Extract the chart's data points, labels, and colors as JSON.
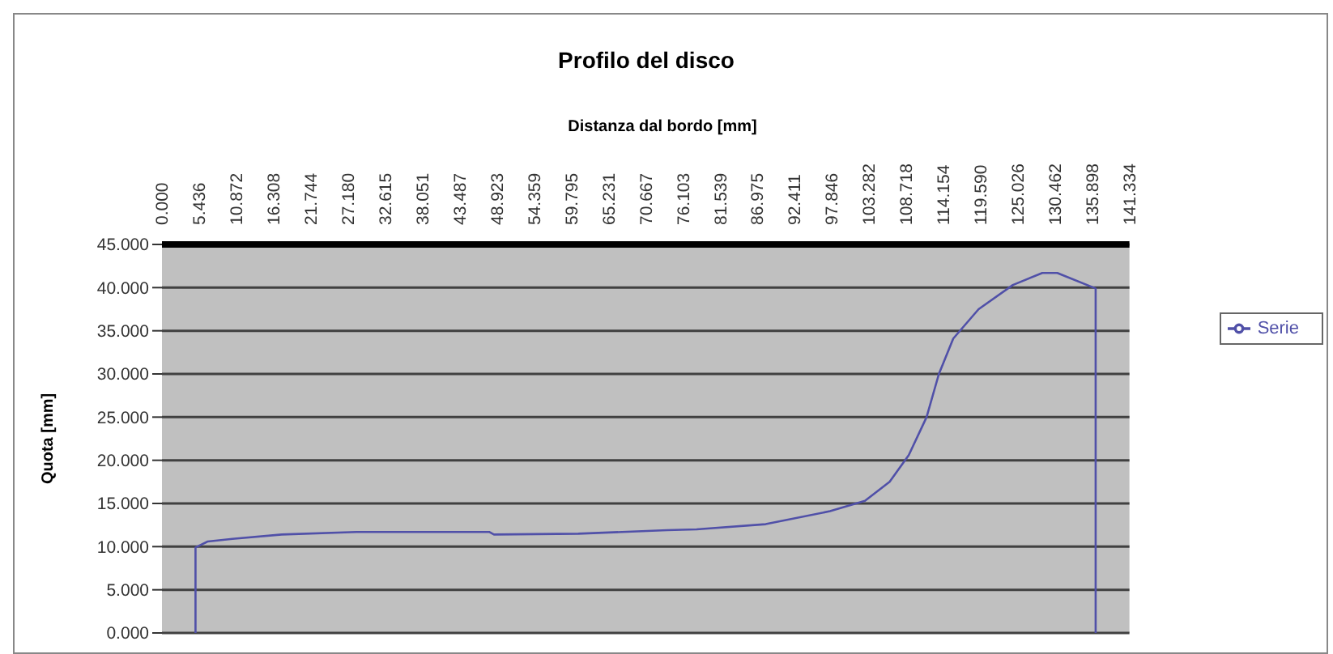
{
  "chart_data": {
    "type": "line",
    "title": "Profilo del disco",
    "xlabel": "Distanza dal bordo [mm]",
    "ylabel": "Quota [mm]",
    "x": [
      4.9,
      4.9,
      6.7,
      10.3,
      17.5,
      28.4,
      47.8,
      48.5,
      60.8,
      73.8,
      78.1,
      88.2,
      97.6,
      102.7,
      106.3,
      109.1,
      111.7,
      113.5,
      115.6,
      119.3,
      124.3,
      128.6,
      130.8,
      136.4,
      136.4
    ],
    "series": [
      {
        "name": "Serie",
        "color": "#5050a8",
        "values": [
          0,
          9.9,
          10.6,
          10.9,
          11.4,
          11.7,
          11.7,
          11.4,
          11.5,
          11.9,
          12.0,
          12.6,
          14.1,
          15.3,
          17.5,
          20.6,
          25.0,
          30.0,
          34.1,
          37.5,
          40.3,
          41.7,
          41.7,
          39.9,
          0
        ]
      }
    ],
    "xlim": [
      0,
      141.334
    ],
    "xticks": [
      {
        "value": 0,
        "label": "0.000"
      },
      {
        "value": 5.436,
        "label": "5.436"
      },
      {
        "value": 10.872,
        "label": "10.872"
      },
      {
        "value": 16.308,
        "label": "16.308"
      },
      {
        "value": 21.744,
        "label": "21.744"
      },
      {
        "value": 27.18,
        "label": "27.180"
      },
      {
        "value": 32.615,
        "label": "32.615"
      },
      {
        "value": 38.051,
        "label": "38.051"
      },
      {
        "value": 43.487,
        "label": "43.487"
      },
      {
        "value": 48.923,
        "label": "48.923"
      },
      {
        "value": 54.359,
        "label": "54.359"
      },
      {
        "value": 59.795,
        "label": "59.795"
      },
      {
        "value": 65.231,
        "label": "65.231"
      },
      {
        "value": 70.667,
        "label": "70.667"
      },
      {
        "value": 76.103,
        "label": "76.103"
      },
      {
        "value": 81.539,
        "label": "81.539"
      },
      {
        "value": 86.975,
        "label": "86.975"
      },
      {
        "value": 92.411,
        "label": "92.411"
      },
      {
        "value": 97.846,
        "label": "97.846"
      },
      {
        "value": 103.282,
        "label": "103.282"
      },
      {
        "value": 108.718,
        "label": "108.718"
      },
      {
        "value": 114.154,
        "label": "114.154"
      },
      {
        "value": 119.59,
        "label": "119.590"
      },
      {
        "value": 125.026,
        "label": "125.026"
      },
      {
        "value": 130.462,
        "label": "130.462"
      },
      {
        "value": 135.898,
        "label": "135.898"
      },
      {
        "value": 141.334,
        "label": "141.334"
      }
    ],
    "ylim": [
      0,
      45
    ],
    "yticks": [
      {
        "value": 0,
        "label": "0.000"
      },
      {
        "value": 5,
        "label": "5.000"
      },
      {
        "value": 10,
        "label": "10.000"
      },
      {
        "value": 15,
        "label": "15.000"
      },
      {
        "value": 20,
        "label": "20.000"
      },
      {
        "value": 25,
        "label": "25.000"
      },
      {
        "value": 30,
        "label": "30.000"
      },
      {
        "value": 35,
        "label": "35.000"
      },
      {
        "value": 40,
        "label": "40.000"
      },
      {
        "value": 45,
        "label": "45.000"
      }
    ],
    "grid": "y",
    "legend": "right",
    "marker": "none",
    "line_style": "solid"
  }
}
